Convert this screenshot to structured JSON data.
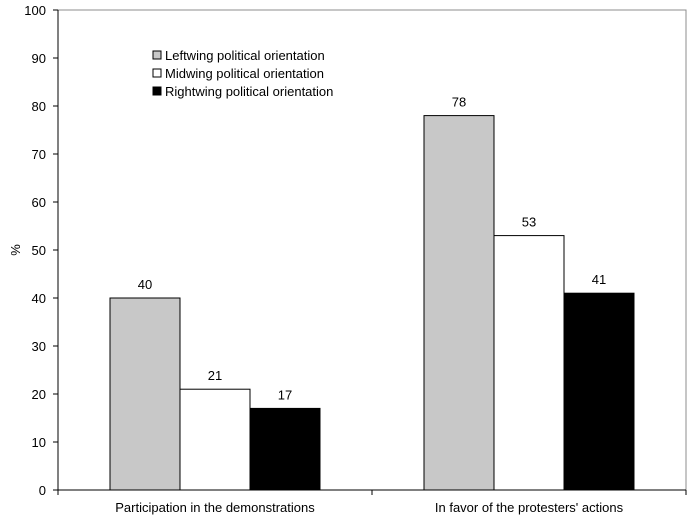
{
  "chart_data": {
    "type": "bar",
    "title": "",
    "xlabel": "",
    "ylabel": "%",
    "ylim": [
      0,
      100
    ],
    "yticks": [
      0,
      10,
      20,
      30,
      40,
      50,
      60,
      70,
      80,
      90,
      100
    ],
    "grid": false,
    "legend_position": "top-left",
    "categories": [
      "Participation in the demonstrations",
      "In favor of the protesters' actions"
    ],
    "series": [
      {
        "name": "Leftwing political orientation",
        "color": "#c8c8c8",
        "values": [
          40,
          78
        ]
      },
      {
        "name": "Midwing political orientation",
        "color": "#ffffff",
        "values": [
          21,
          53
        ]
      },
      {
        "name": "Rightwing political orientation",
        "color": "#000000",
        "values": [
          17,
          41
        ]
      }
    ]
  }
}
